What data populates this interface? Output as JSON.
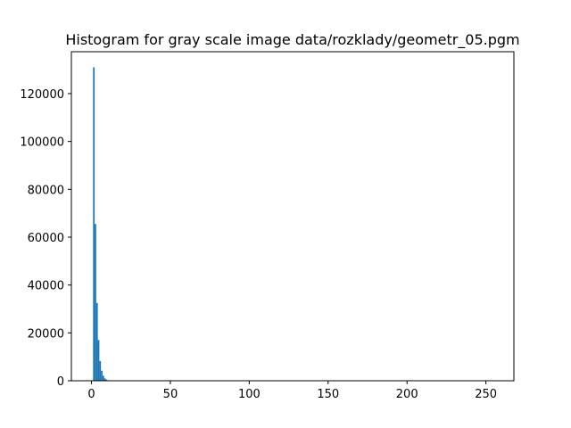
{
  "chart_data": {
    "type": "bar",
    "title": "Histogram for gray scale image data/rozklady/geometr_05.pgm",
    "xlabel": "",
    "ylabel": "",
    "xlim": [
      -12.75,
      267.75
    ],
    "ylim": [
      0,
      137500
    ],
    "x_ticks": [
      0,
      50,
      100,
      150,
      200,
      250
    ],
    "y_ticks": [
      0,
      20000,
      40000,
      60000,
      80000,
      100000,
      120000
    ],
    "bin_width": 1,
    "bins": [
      {
        "x": 0,
        "value": 0
      },
      {
        "x": 1,
        "value": 131000
      },
      {
        "x": 2,
        "value": 65500
      },
      {
        "x": 3,
        "value": 32500
      },
      {
        "x": 4,
        "value": 17000
      },
      {
        "x": 5,
        "value": 8200
      },
      {
        "x": 6,
        "value": 4200
      },
      {
        "x": 7,
        "value": 2100
      },
      {
        "x": 8,
        "value": 1000
      },
      {
        "x": 9,
        "value": 500
      },
      {
        "x": 10,
        "value": 200
      },
      {
        "x": 11,
        "value": 100
      }
    ],
    "bar_color": "#1f77b4",
    "grid": false,
    "legend": "none"
  }
}
